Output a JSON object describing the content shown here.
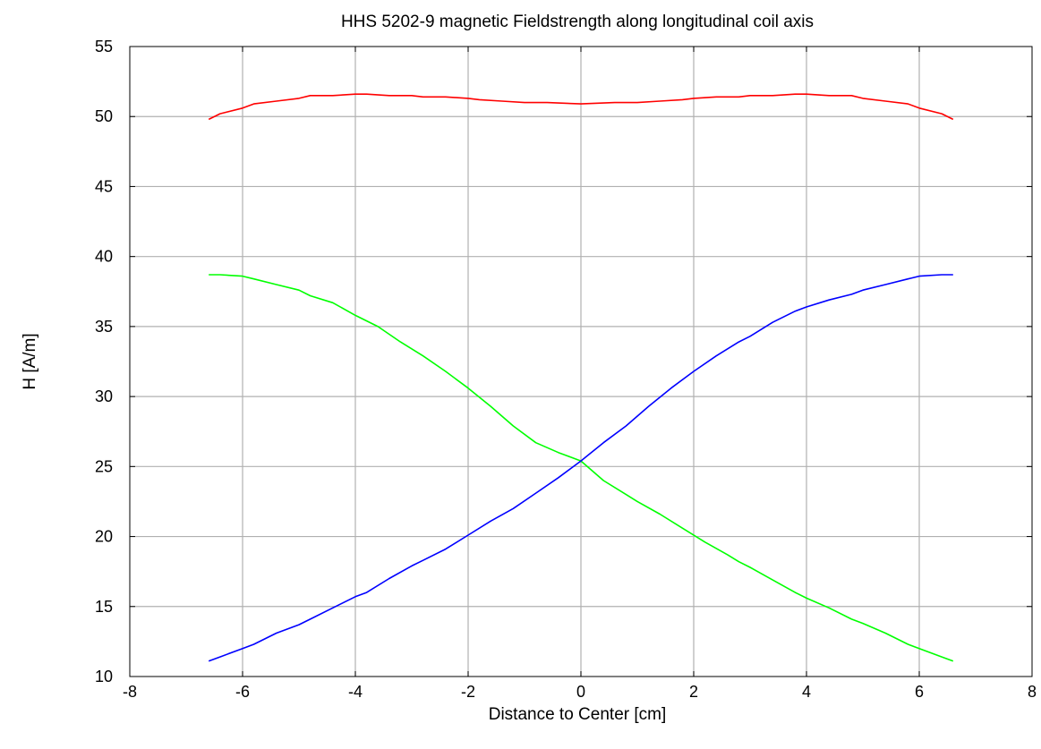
{
  "chart_data": {
    "type": "line",
    "title": "HHS 5202-9 magnetic Fieldstrength along longitudinal coil axis",
    "xlabel": "Distance to Center [cm]",
    "ylabel": "H [A/m]",
    "xlim": [
      -8,
      8
    ],
    "ylim": [
      10,
      55
    ],
    "xticks": [
      -8,
      -6,
      -4,
      -2,
      0,
      2,
      4,
      6,
      8
    ],
    "yticks": [
      10,
      15,
      20,
      25,
      30,
      35,
      40,
      45,
      50,
      55
    ],
    "grid": true,
    "legend": "none",
    "series": [
      {
        "color": "#ff0000",
        "x": [
          -6.6,
          -6.4,
          -6.0,
          -5.8,
          -5.4,
          -5.0,
          -4.8,
          -4.4,
          -4.0,
          -3.8,
          -3.4,
          -3.0,
          -2.8,
          -2.4,
          -2.0,
          -1.8,
          -1.4,
          -1.0,
          -0.6,
          0.0,
          0.6,
          1.0,
          1.4,
          1.8,
          2.0,
          2.4,
          2.8,
          3.0,
          3.4,
          3.8,
          4.0,
          4.4,
          4.8,
          5.0,
          5.4,
          5.8,
          6.0,
          6.4,
          6.6
        ],
        "y": [
          49.8,
          50.2,
          50.6,
          50.9,
          51.1,
          51.3,
          51.5,
          51.5,
          51.6,
          51.6,
          51.5,
          51.5,
          51.4,
          51.4,
          51.3,
          51.2,
          51.1,
          51.0,
          51.0,
          50.9,
          51.0,
          51.0,
          51.1,
          51.2,
          51.3,
          51.4,
          51.4,
          51.5,
          51.5,
          51.6,
          51.6,
          51.5,
          51.5,
          51.3,
          51.1,
          50.9,
          50.6,
          50.2,
          49.8
        ]
      },
      {
        "color": "#00ff00",
        "x": [
          -6.6,
          -6.4,
          -6.0,
          -5.8,
          -5.4,
          -5.0,
          -4.8,
          -4.4,
          -4.0,
          -3.6,
          -3.2,
          -2.8,
          -2.4,
          -2.0,
          -1.6,
          -1.2,
          -0.8,
          -0.4,
          0.0,
          0.4,
          0.8,
          1.0,
          1.4,
          1.8,
          2.2,
          2.6,
          2.8,
          3.0,
          3.4,
          3.8,
          4.0,
          4.4,
          4.8,
          5.0,
          5.4,
          5.8,
          6.0,
          6.4,
          6.6
        ],
        "y": [
          38.7,
          38.7,
          38.6,
          38.4,
          38.0,
          37.6,
          37.2,
          36.7,
          35.8,
          35.0,
          33.9,
          32.9,
          31.8,
          30.6,
          29.3,
          27.9,
          26.7,
          26.0,
          25.4,
          24.0,
          23.0,
          22.5,
          21.6,
          20.6,
          19.6,
          18.7,
          18.2,
          17.8,
          16.9,
          16.0,
          15.6,
          14.9,
          14.1,
          13.8,
          13.1,
          12.3,
          12.0,
          11.4,
          11.1
        ]
      },
      {
        "color": "#0000ff",
        "x": [
          -6.6,
          -6.4,
          -6.0,
          -5.8,
          -5.4,
          -5.0,
          -4.8,
          -4.4,
          -4.0,
          -3.8,
          -3.4,
          -3.0,
          -2.8,
          -2.4,
          -2.0,
          -1.6,
          -1.2,
          -0.8,
          -0.4,
          0.0,
          0.4,
          0.8,
          1.2,
          1.6,
          2.0,
          2.4,
          2.8,
          3.0,
          3.4,
          3.8,
          4.0,
          4.4,
          4.8,
          5.0,
          5.4,
          5.8,
          6.0,
          6.4,
          6.6
        ],
        "y": [
          11.1,
          11.4,
          12.0,
          12.3,
          13.1,
          13.7,
          14.1,
          14.9,
          15.7,
          16.0,
          17.0,
          17.9,
          18.3,
          19.1,
          20.1,
          21.1,
          22.0,
          23.1,
          24.2,
          25.4,
          26.7,
          27.9,
          29.3,
          30.6,
          31.8,
          32.9,
          33.9,
          34.3,
          35.3,
          36.1,
          36.4,
          36.9,
          37.3,
          37.6,
          38.0,
          38.4,
          38.6,
          38.7,
          38.7
        ]
      }
    ]
  }
}
